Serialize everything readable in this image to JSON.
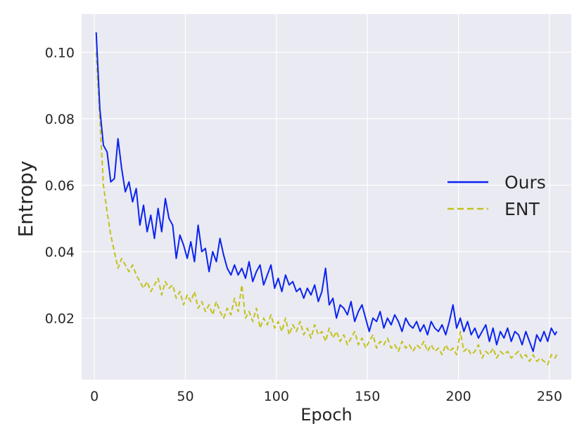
{
  "chart_data": {
    "type": "line",
    "xlabel": "Epoch",
    "ylabel": "Entropy",
    "xlim": [
      -7,
      262
    ],
    "ylim": [
      0.0015,
      0.1115
    ],
    "xticks": [
      0,
      50,
      100,
      150,
      200,
      250
    ],
    "yticks": [
      0.02,
      0.04,
      0.06,
      0.08,
      0.1
    ],
    "xtick_labels": [
      "0",
      "50",
      "100",
      "150",
      "200",
      "250"
    ],
    "ytick_labels": [
      "0.02",
      "0.04",
      "0.06",
      "0.08",
      "0.10"
    ],
    "grid": true,
    "legend_position": "center-right",
    "background": "#eaeaf2",
    "series": [
      {
        "name": "Ours",
        "color": "#0a24f0",
        "style": "solid",
        "points": [
          [
            1,
            0.106
          ],
          [
            3,
            0.083
          ],
          [
            5,
            0.072
          ],
          [
            7,
            0.07
          ],
          [
            9,
            0.061
          ],
          [
            11,
            0.062
          ],
          [
            13,
            0.074
          ],
          [
            15,
            0.065
          ],
          [
            17,
            0.058
          ],
          [
            19,
            0.061
          ],
          [
            21,
            0.055
          ],
          [
            23,
            0.059
          ],
          [
            25,
            0.048
          ],
          [
            27,
            0.054
          ],
          [
            29,
            0.046
          ],
          [
            31,
            0.051
          ],
          [
            33,
            0.044
          ],
          [
            35,
            0.053
          ],
          [
            37,
            0.046
          ],
          [
            39,
            0.056
          ],
          [
            41,
            0.05
          ],
          [
            43,
            0.048
          ],
          [
            45,
            0.038
          ],
          [
            47,
            0.045
          ],
          [
            49,
            0.042
          ],
          [
            51,
            0.038
          ],
          [
            53,
            0.043
          ],
          [
            55,
            0.037
          ],
          [
            57,
            0.048
          ],
          [
            59,
            0.04
          ],
          [
            61,
            0.041
          ],
          [
            63,
            0.034
          ],
          [
            65,
            0.04
          ],
          [
            67,
            0.037
          ],
          [
            69,
            0.044
          ],
          [
            71,
            0.039
          ],
          [
            73,
            0.035
          ],
          [
            75,
            0.033
          ],
          [
            77,
            0.036
          ],
          [
            79,
            0.033
          ],
          [
            81,
            0.035
          ],
          [
            83,
            0.032
          ],
          [
            85,
            0.037
          ],
          [
            87,
            0.031
          ],
          [
            89,
            0.034
          ],
          [
            91,
            0.036
          ],
          [
            93,
            0.03
          ],
          [
            95,
            0.033
          ],
          [
            97,
            0.036
          ],
          [
            99,
            0.029
          ],
          [
            101,
            0.032
          ],
          [
            103,
            0.028
          ],
          [
            105,
            0.033
          ],
          [
            107,
            0.03
          ],
          [
            109,
            0.031
          ],
          [
            111,
            0.028
          ],
          [
            113,
            0.029
          ],
          [
            115,
            0.026
          ],
          [
            117,
            0.029
          ],
          [
            119,
            0.027
          ],
          [
            121,
            0.03
          ],
          [
            123,
            0.025
          ],
          [
            125,
            0.028
          ],
          [
            127,
            0.035
          ],
          [
            129,
            0.024
          ],
          [
            131,
            0.026
          ],
          [
            133,
            0.02
          ],
          [
            135,
            0.024
          ],
          [
            137,
            0.023
          ],
          [
            139,
            0.021
          ],
          [
            141,
            0.025
          ],
          [
            143,
            0.019
          ],
          [
            145,
            0.022
          ],
          [
            147,
            0.024
          ],
          [
            149,
            0.02
          ],
          [
            151,
            0.016
          ],
          [
            153,
            0.02
          ],
          [
            155,
            0.019
          ],
          [
            157,
            0.022
          ],
          [
            159,
            0.017
          ],
          [
            161,
            0.02
          ],
          [
            163,
            0.018
          ],
          [
            165,
            0.021
          ],
          [
            167,
            0.019
          ],
          [
            169,
            0.016
          ],
          [
            171,
            0.02
          ],
          [
            173,
            0.018
          ],
          [
            175,
            0.017
          ],
          [
            177,
            0.019
          ],
          [
            179,
            0.016
          ],
          [
            181,
            0.018
          ],
          [
            183,
            0.015
          ],
          [
            185,
            0.019
          ],
          [
            187,
            0.017
          ],
          [
            189,
            0.016
          ],
          [
            191,
            0.018
          ],
          [
            193,
            0.015
          ],
          [
            195,
            0.019
          ],
          [
            197,
            0.024
          ],
          [
            199,
            0.017
          ],
          [
            201,
            0.02
          ],
          [
            203,
            0.016
          ],
          [
            205,
            0.019
          ],
          [
            207,
            0.015
          ],
          [
            209,
            0.017
          ],
          [
            211,
            0.014
          ],
          [
            213,
            0.016
          ],
          [
            215,
            0.018
          ],
          [
            217,
            0.013
          ],
          [
            219,
            0.017
          ],
          [
            221,
            0.012
          ],
          [
            223,
            0.016
          ],
          [
            225,
            0.014
          ],
          [
            227,
            0.017
          ],
          [
            229,
            0.013
          ],
          [
            231,
            0.016
          ],
          [
            233,
            0.015
          ],
          [
            235,
            0.012
          ],
          [
            237,
            0.016
          ],
          [
            239,
            0.013
          ],
          [
            241,
            0.01
          ],
          [
            243,
            0.015
          ],
          [
            245,
            0.013
          ],
          [
            247,
            0.016
          ],
          [
            249,
            0.013
          ],
          [
            251,
            0.017
          ],
          [
            253,
            0.015
          ],
          [
            254,
            0.016
          ]
        ]
      },
      {
        "name": "ENT",
        "color": "#c2c21a",
        "style": "dashed",
        "points": [
          [
            1,
            0.1
          ],
          [
            3,
            0.08
          ],
          [
            5,
            0.06
          ],
          [
            7,
            0.052
          ],
          [
            9,
            0.045
          ],
          [
            11,
            0.04
          ],
          [
            13,
            0.035
          ],
          [
            15,
            0.038
          ],
          [
            17,
            0.036
          ],
          [
            19,
            0.034
          ],
          [
            21,
            0.036
          ],
          [
            23,
            0.033
          ],
          [
            25,
            0.031
          ],
          [
            27,
            0.029
          ],
          [
            29,
            0.031
          ],
          [
            31,
            0.028
          ],
          [
            33,
            0.03
          ],
          [
            35,
            0.032
          ],
          [
            37,
            0.027
          ],
          [
            39,
            0.031
          ],
          [
            41,
            0.029
          ],
          [
            43,
            0.03
          ],
          [
            45,
            0.026
          ],
          [
            47,
            0.028
          ],
          [
            49,
            0.024
          ],
          [
            51,
            0.027
          ],
          [
            53,
            0.025
          ],
          [
            55,
            0.028
          ],
          [
            57,
            0.023
          ],
          [
            59,
            0.025
          ],
          [
            61,
            0.022
          ],
          [
            63,
            0.024
          ],
          [
            65,
            0.021
          ],
          [
            67,
            0.025
          ],
          [
            69,
            0.022
          ],
          [
            71,
            0.02
          ],
          [
            73,
            0.023
          ],
          [
            75,
            0.021
          ],
          [
            77,
            0.026
          ],
          [
            79,
            0.022
          ],
          [
            81,
            0.03
          ],
          [
            83,
            0.02
          ],
          [
            85,
            0.022
          ],
          [
            87,
            0.019
          ],
          [
            89,
            0.023
          ],
          [
            91,
            0.017
          ],
          [
            93,
            0.02
          ],
          [
            95,
            0.018
          ],
          [
            97,
            0.021
          ],
          [
            99,
            0.017
          ],
          [
            101,
            0.019
          ],
          [
            103,
            0.016
          ],
          [
            105,
            0.02
          ],
          [
            107,
            0.015
          ],
          [
            109,
            0.018
          ],
          [
            111,
            0.016
          ],
          [
            113,
            0.019
          ],
          [
            115,
            0.015
          ],
          [
            117,
            0.017
          ],
          [
            119,
            0.014
          ],
          [
            121,
            0.018
          ],
          [
            123,
            0.015
          ],
          [
            125,
            0.016
          ],
          [
            127,
            0.013
          ],
          [
            129,
            0.017
          ],
          [
            131,
            0.014
          ],
          [
            133,
            0.016
          ],
          [
            135,
            0.013
          ],
          [
            137,
            0.015
          ],
          [
            139,
            0.012
          ],
          [
            141,
            0.014
          ],
          [
            143,
            0.016
          ],
          [
            145,
            0.012
          ],
          [
            147,
            0.014
          ],
          [
            149,
            0.011
          ],
          [
            151,
            0.013
          ],
          [
            153,
            0.015
          ],
          [
            155,
            0.011
          ],
          [
            157,
            0.013
          ],
          [
            159,
            0.012
          ],
          [
            161,
            0.014
          ],
          [
            163,
            0.011
          ],
          [
            165,
            0.012
          ],
          [
            167,
            0.01
          ],
          [
            169,
            0.013
          ],
          [
            171,
            0.011
          ],
          [
            173,
            0.012
          ],
          [
            175,
            0.01
          ],
          [
            177,
            0.012
          ],
          [
            179,
            0.011
          ],
          [
            181,
            0.013
          ],
          [
            183,
            0.01
          ],
          [
            185,
            0.012
          ],
          [
            187,
            0.01
          ],
          [
            189,
            0.011
          ],
          [
            191,
            0.009
          ],
          [
            193,
            0.012
          ],
          [
            195,
            0.01
          ],
          [
            197,
            0.011
          ],
          [
            199,
            0.009
          ],
          [
            201,
            0.016
          ],
          [
            203,
            0.01
          ],
          [
            205,
            0.011
          ],
          [
            207,
            0.009
          ],
          [
            209,
            0.01
          ],
          [
            211,
            0.012
          ],
          [
            213,
            0.008
          ],
          [
            215,
            0.01
          ],
          [
            217,
            0.009
          ],
          [
            219,
            0.011
          ],
          [
            221,
            0.008
          ],
          [
            223,
            0.01
          ],
          [
            225,
            0.009
          ],
          [
            227,
            0.01
          ],
          [
            229,
            0.008
          ],
          [
            231,
            0.009
          ],
          [
            233,
            0.01
          ],
          [
            235,
            0.008
          ],
          [
            237,
            0.009
          ],
          [
            239,
            0.007
          ],
          [
            241,
            0.009
          ],
          [
            243,
            0.007
          ],
          [
            245,
            0.008
          ],
          [
            247,
            0.007
          ],
          [
            249,
            0.006
          ],
          [
            251,
            0.009
          ],
          [
            253,
            0.008
          ],
          [
            254,
            0.009
          ]
        ]
      }
    ]
  }
}
